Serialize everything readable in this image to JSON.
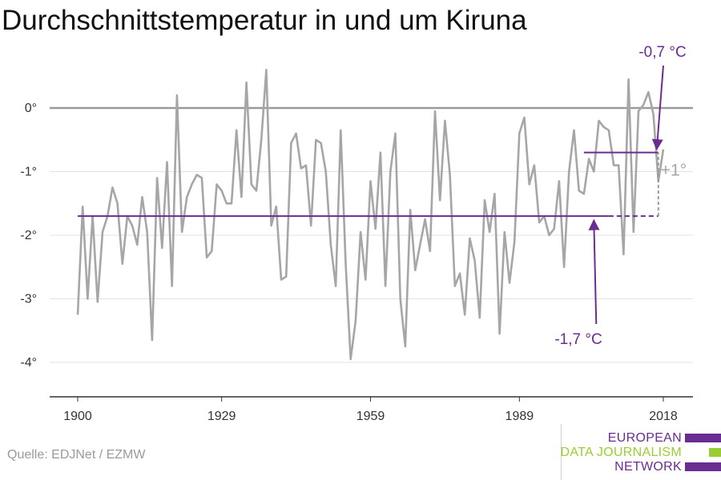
{
  "title": "Durchschnittstemperatur in und um Kiruna",
  "source": "Quelle: EDJNet / EZMW",
  "logo": {
    "lines": [
      "EUROPEAN",
      "DATA JOURNALISM",
      "NETWORK"
    ],
    "colors": [
      "#6a2c91",
      "#9acd32",
      "#6a2c91"
    ]
  },
  "colors": {
    "series": "#a6a6a6",
    "accent": "#6a2c91",
    "zero_line": "#9a9a9a",
    "grid": "#e2e2e2"
  },
  "chart_data": {
    "type": "line",
    "x_ticks": [
      1900,
      1929,
      1959,
      1989,
      2018
    ],
    "y_ticks": [
      {
        "value": 0,
        "label": "0°"
      },
      {
        "value": -1,
        "label": "-1°"
      },
      {
        "value": -2,
        "label": "-2°"
      },
      {
        "value": -3,
        "label": "-3°"
      },
      {
        "value": -4,
        "label": "-4°"
      }
    ],
    "xlim": [
      1900,
      2018
    ],
    "ylim": [
      -4.5,
      0.7
    ],
    "series": [
      {
        "x": [
          1900,
          1901,
          1902,
          1903,
          1904,
          1905,
          1906,
          1907,
          1908,
          1909,
          1910,
          1911,
          1912,
          1913,
          1914,
          1915,
          1916,
          1917,
          1918,
          1919,
          1920,
          1921,
          1922,
          1923,
          1924,
          1925,
          1926,
          1927,
          1928,
          1929,
          1930,
          1931,
          1932,
          1933,
          1934,
          1935,
          1936,
          1937,
          1938,
          1939,
          1940,
          1941,
          1942,
          1943,
          1944,
          1945,
          1946,
          1947,
          1948,
          1949,
          1950,
          1951,
          1952,
          1953,
          1954,
          1955,
          1956,
          1957,
          1958,
          1959,
          1960,
          1961,
          1962,
          1963,
          1964,
          1965,
          1966,
          1967,
          1968,
          1969,
          1970,
          1971,
          1972,
          1973,
          1974,
          1975,
          1976,
          1977,
          1978,
          1979,
          1980,
          1981,
          1982,
          1983,
          1984,
          1985,
          1986,
          1987,
          1988,
          1989,
          1990,
          1991,
          1992,
          1993,
          1994,
          1995,
          1996,
          1997,
          1998,
          1999,
          2000,
          2001,
          2002,
          2003,
          2004,
          2005,
          2006,
          2007,
          2008,
          2009,
          2010,
          2011,
          2012,
          2013,
          2014,
          2015,
          2016,
          2017,
          2018
        ],
        "values": [
          -3.25,
          -1.55,
          -3.0,
          -1.7,
          -3.05,
          -1.95,
          -1.7,
          -1.25,
          -1.5,
          -2.45,
          -1.7,
          -1.85,
          -2.15,
          -1.4,
          -1.95,
          -3.65,
          -1.1,
          -2.2,
          -0.85,
          -2.8,
          0.2,
          -1.95,
          -1.4,
          -1.2,
          -1.05,
          -1.1,
          -2.35,
          -2.25,
          -1.2,
          -1.3,
          -1.5,
          -1.5,
          -0.35,
          -1.4,
          0.4,
          -1.2,
          -1.3,
          -0.5,
          0.6,
          -1.85,
          -1.55,
          -2.7,
          -2.65,
          -0.55,
          -0.4,
          -0.95,
          -0.9,
          -1.85,
          -0.5,
          -0.55,
          -1.0,
          -2.15,
          -2.8,
          -0.35,
          -2.45,
          -3.95,
          -3.35,
          -1.95,
          -2.7,
          -1.15,
          -1.9,
          -0.7,
          -2.8,
          -1.0,
          -0.4,
          -3.0,
          -3.75,
          -1.6,
          -2.55,
          -2.15,
          -1.75,
          -2.25,
          -0.05,
          -1.45,
          -0.2,
          -1.05,
          -2.8,
          -2.6,
          -3.25,
          -2.05,
          -2.4,
          -3.3,
          -1.45,
          -1.95,
          -1.35,
          -3.55,
          -1.95,
          -2.75,
          -2.1,
          -0.4,
          -0.15,
          -1.2,
          -0.9,
          -1.8,
          -1.7,
          -2.0,
          -1.9,
          -1.15,
          -2.5,
          -1.0,
          -0.35,
          -1.3,
          -1.35,
          -0.8,
          -1.0,
          -0.2,
          -0.3,
          -0.35,
          -0.9,
          -0.9,
          -2.3,
          0.45,
          -1.95,
          -0.05,
          0.05,
          0.25,
          -0.1,
          -1.15,
          -0.65
        ]
      }
    ],
    "reference_lines": [
      {
        "label": "-1,7 °C",
        "value": -1.7,
        "solid_x": [
          1900,
          2007
        ],
        "dashed_x": [
          2007,
          2017
        ]
      },
      {
        "label": "-0,7 °C",
        "value": -0.7,
        "solid_x": [
          2002,
          2017
        ]
      }
    ],
    "annotations": [
      {
        "text": "-0,7 °C",
        "points_to_x": 2017,
        "points_to_y": -0.7
      },
      {
        "text": "-1,7 °C",
        "points_to_x": 2004,
        "points_to_y": -1.7
      },
      {
        "text": "+1°",
        "between_y": [
          -1.7,
          -0.7
        ],
        "x": 2017
      }
    ]
  }
}
